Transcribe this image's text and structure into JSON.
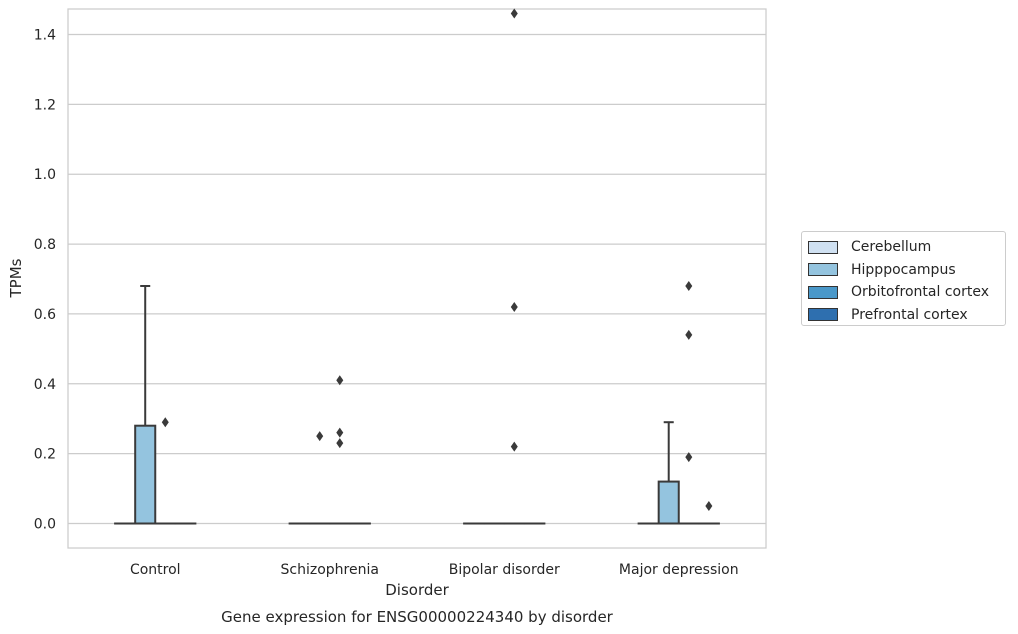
{
  "chart_data": {
    "type": "box",
    "title": "Gene expression for ENSG00000224340 by disorder",
    "xlabel": "Disorder",
    "ylabel": "TPMs",
    "ylim": [
      -0.07,
      1.55
    ],
    "yticks": [
      0.0,
      0.2,
      0.4,
      0.6,
      0.8,
      1.0,
      1.2,
      1.4
    ],
    "ytick_labels": [
      "0.0",
      "0.2",
      "0.4",
      "0.6",
      "0.8",
      "1.0",
      "1.2",
      "1.4"
    ],
    "categories": [
      "Control",
      "Schizophrenia",
      "Bipolar disorder",
      "Major depression"
    ],
    "grid": true,
    "legend_position": "right",
    "series": [
      {
        "name": "Cerebellum",
        "color": "#d0e1f2",
        "boxes": [
          {
            "q1": 0,
            "median": 0,
            "q3": 0,
            "whisker_low": 0,
            "whisker_high": 0,
            "outliers": []
          },
          {
            "q1": 0,
            "median": 0,
            "q3": 0,
            "whisker_low": 0,
            "whisker_high": 0,
            "outliers": []
          },
          {
            "q1": 0,
            "median": 0,
            "q3": 0,
            "whisker_low": 0,
            "whisker_high": 0,
            "outliers": []
          },
          {
            "q1": 0,
            "median": 0,
            "q3": 0,
            "whisker_low": 0,
            "whisker_high": 0,
            "outliers": []
          }
        ]
      },
      {
        "name": "Hipppocampus",
        "color": "#94c4df",
        "boxes": [
          {
            "q1": 0,
            "median": 0,
            "q3": 0.28,
            "whisker_low": 0,
            "whisker_high": 0.68,
            "outliers": []
          },
          {
            "q1": 0,
            "median": 0,
            "q3": 0,
            "whisker_low": 0,
            "whisker_high": 0,
            "outliers": [
              0.25
            ]
          },
          {
            "q1": 0,
            "median": 0,
            "q3": 0,
            "whisker_low": 0,
            "whisker_high": 0,
            "outliers": []
          },
          {
            "q1": 0,
            "median": 0,
            "q3": 0.12,
            "whisker_low": 0,
            "whisker_high": 0.29,
            "outliers": []
          }
        ]
      },
      {
        "name": "Orbitofrontal cortex",
        "color": "#4a98c9",
        "boxes": [
          {
            "q1": 0,
            "median": 0,
            "q3": 0,
            "whisker_low": 0,
            "whisker_high": 0,
            "outliers": [
              0.29
            ]
          },
          {
            "q1": 0,
            "median": 0,
            "q3": 0,
            "whisker_low": 0,
            "whisker_high": 0,
            "outliers": [
              0.41,
              0.26,
              0.23
            ]
          },
          {
            "q1": 0,
            "median": 0,
            "q3": 0,
            "whisker_low": 0,
            "whisker_high": 0,
            "outliers": [
              1.46,
              0.62,
              0.22
            ]
          },
          {
            "q1": 0,
            "median": 0,
            "q3": 0,
            "whisker_low": 0,
            "whisker_high": 0,
            "outliers": [
              0.68,
              0.54,
              0.19
            ]
          }
        ]
      },
      {
        "name": "Prefrontal cortex",
        "color": "#2e6faf",
        "boxes": [
          {
            "q1": 0,
            "median": 0,
            "q3": 0,
            "whisker_low": 0,
            "whisker_high": 0,
            "outliers": []
          },
          {
            "q1": 0,
            "median": 0,
            "q3": 0,
            "whisker_low": 0,
            "whisker_high": 0,
            "outliers": []
          },
          {
            "q1": 0,
            "median": 0,
            "q3": 0,
            "whisker_low": 0,
            "whisker_high": 0,
            "outliers": []
          },
          {
            "q1": 0,
            "median": 0,
            "q3": 0,
            "whisker_low": 0,
            "whisker_high": 0,
            "outliers": [
              0.05
            ]
          }
        ]
      }
    ]
  }
}
